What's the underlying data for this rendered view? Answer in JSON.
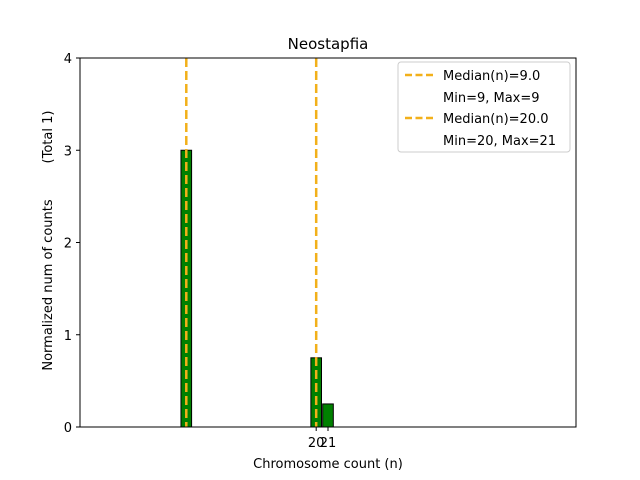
{
  "chart_data": {
    "type": "bar",
    "title": "Neostapfia",
    "xlabel": "Chromosome count (n)",
    "ylabel": "Normalized num of counts",
    "ylabel_note": "(Total 1)",
    "xlim": [
      0,
      42
    ],
    "ylim": [
      0,
      4
    ],
    "yticks": [
      0,
      1,
      2,
      3,
      4
    ],
    "xticks": [
      20,
      21
    ],
    "bar_width": 0.9,
    "bars": [
      {
        "x": 9,
        "value": 3.0
      },
      {
        "x": 20,
        "value": 0.75
      },
      {
        "x": 21,
        "value": 0.25
      }
    ],
    "baseline_segment": {
      "from": 0,
      "to": 13
    },
    "median_lines": [
      {
        "x": 9,
        "label": "Median(n)=9.0",
        "range_label": "Min=9, Max=9"
      },
      {
        "x": 20,
        "label": "Median(n)=20.0",
        "range_label": "Min=20, Max=21"
      }
    ],
    "bar_color": "#008000",
    "bar_edge_color": "#000000",
    "median_color": "#f2b01a",
    "legend_position": "upper right"
  }
}
